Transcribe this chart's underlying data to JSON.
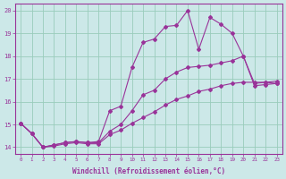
{
  "xlabel": "Windchill (Refroidissement éolien,°C)",
  "bg_color": "#cce8e8",
  "grid_color": "#99ccbb",
  "line_color": "#993399",
  "xlim": [
    -0.5,
    23.5
  ],
  "ylim": [
    13.7,
    20.3
  ],
  "xticks": [
    0,
    1,
    2,
    3,
    4,
    5,
    6,
    7,
    8,
    9,
    10,
    11,
    12,
    13,
    14,
    15,
    16,
    17,
    18,
    19,
    20,
    21,
    22,
    23
  ],
  "yticks": [
    14,
    15,
    16,
    17,
    18,
    19,
    20
  ],
  "series1_x": [
    0,
    1,
    2,
    3,
    4,
    5,
    6,
    7,
    8,
    9,
    10,
    11,
    12,
    13,
    14,
    15,
    16,
    17,
    18,
    19,
    20,
    21,
    22,
    23
  ],
  "series1_y": [
    15.05,
    14.6,
    14.0,
    14.05,
    14.15,
    14.2,
    14.15,
    14.15,
    14.55,
    14.75,
    15.05,
    15.3,
    15.55,
    15.85,
    16.1,
    16.25,
    16.45,
    16.55,
    16.7,
    16.8,
    16.85,
    16.85,
    16.85,
    16.9
  ],
  "series2_x": [
    0,
    1,
    2,
    3,
    4,
    5,
    6,
    7,
    8,
    9,
    10,
    11,
    12,
    13,
    14,
    15,
    16,
    17,
    18,
    19,
    20,
    21,
    22,
    23
  ],
  "series2_y": [
    15.05,
    14.6,
    14.0,
    14.1,
    14.2,
    14.25,
    14.2,
    14.2,
    14.7,
    15.0,
    15.6,
    16.3,
    16.5,
    17.0,
    17.3,
    17.5,
    17.55,
    17.6,
    17.7,
    17.8,
    18.0,
    16.8,
    16.85,
    16.8
  ],
  "series3_x": [
    0,
    1,
    2,
    3,
    4,
    5,
    6,
    7,
    8,
    9,
    10,
    11,
    12,
    13,
    14,
    15,
    16,
    17,
    18,
    19,
    20,
    21,
    22,
    23
  ],
  "series3_y": [
    15.05,
    14.6,
    14.0,
    14.1,
    14.2,
    14.25,
    14.2,
    14.25,
    15.6,
    15.8,
    17.5,
    18.6,
    18.75,
    19.3,
    19.35,
    20.0,
    18.3,
    19.7,
    19.4,
    19.0,
    18.0,
    16.7,
    16.75,
    16.8
  ],
  "marker": "D",
  "markersize": 2.0,
  "linewidth": 0.8
}
